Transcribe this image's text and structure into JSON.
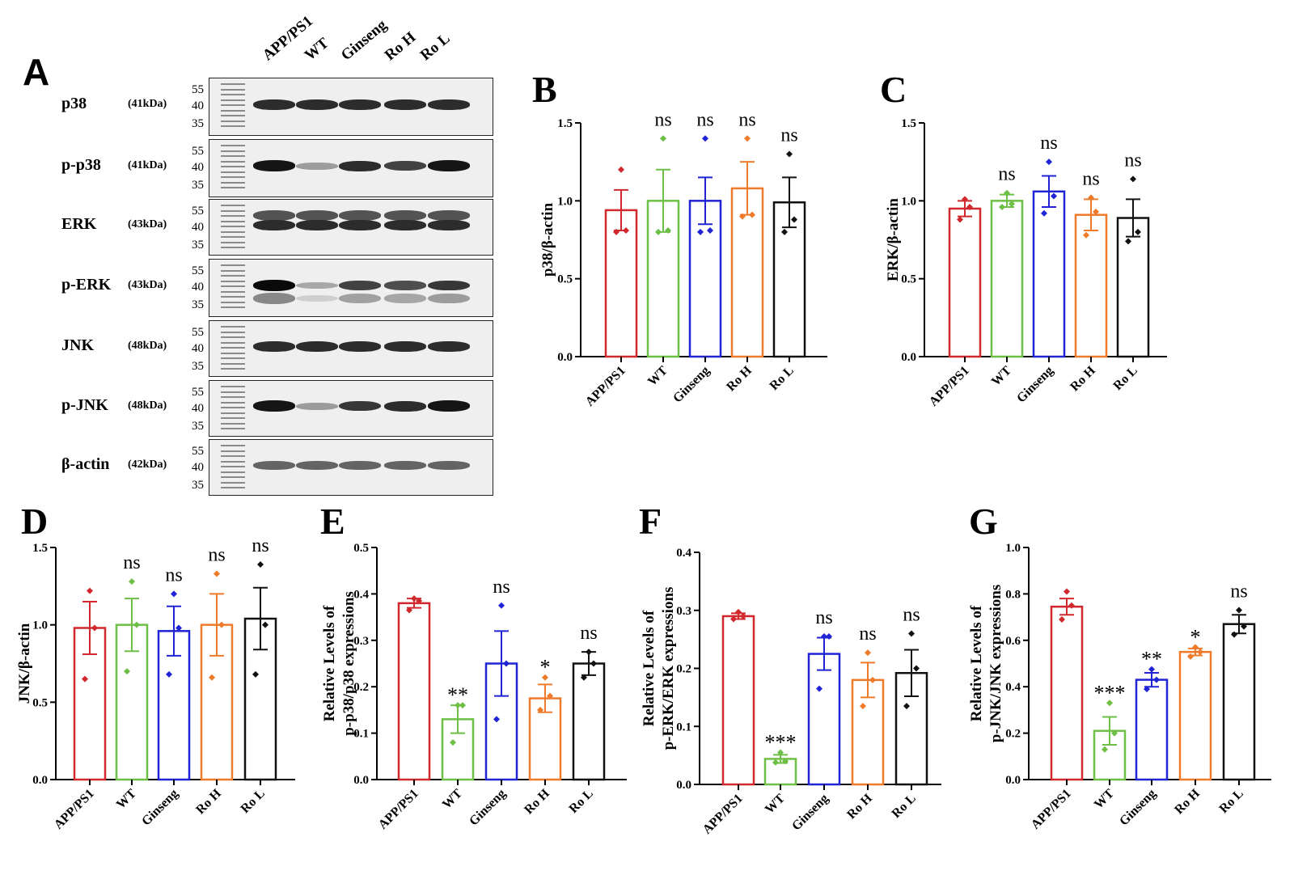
{
  "colors": {
    "APP/PS1": "#d0282c",
    "WT": "#6dbf45",
    "Ginseng": "#2024d4",
    "Ro H": "#ee7a2a",
    "Ro L": "#111111"
  },
  "panelA": {
    "letter": "A",
    "lanes": [
      "APP/PS1",
      "WT",
      "Ginseng",
      "Ro H",
      "Ro L"
    ],
    "blots": [
      {
        "label": "p38",
        "kda": "(41kDa)",
        "markers": [
          "55",
          "40",
          "35"
        ],
        "intensity": [
          0.85,
          0.85,
          0.85,
          0.85,
          0.85
        ]
      },
      {
        "label": "p-p38",
        "kda": "(41kDa)",
        "markers": [
          "55",
          "40",
          "35"
        ],
        "intensity": [
          0.95,
          0.35,
          0.85,
          0.75,
          0.95
        ]
      },
      {
        "label": "ERK",
        "kda": "(43kDa)",
        "markers": [
          "55",
          "40",
          "35"
        ],
        "intensity": [
          0.85,
          0.85,
          0.85,
          0.85,
          0.85
        ]
      },
      {
        "label": "p-ERK",
        "kda": "(43kDa)",
        "markers": [
          "55",
          "40",
          "35"
        ],
        "intensity": [
          1.0,
          0.3,
          0.75,
          0.7,
          0.8
        ]
      },
      {
        "label": "JNK",
        "kda": "(48kDa)",
        "markers": [
          "55",
          "40",
          "35"
        ],
        "intensity": [
          0.85,
          0.85,
          0.85,
          0.85,
          0.85
        ]
      },
      {
        "label": "p-JNK",
        "kda": "(48kDa)",
        "markers": [
          "55",
          "40",
          "35"
        ],
        "intensity": [
          0.95,
          0.35,
          0.8,
          0.85,
          0.95
        ]
      },
      {
        "label": "β-actin",
        "kda": "(42kDa)",
        "markers": [
          "55",
          "40",
          "35"
        ],
        "intensity": [
          0.6,
          0.6,
          0.6,
          0.6,
          0.6
        ]
      }
    ]
  },
  "chart_data": [
    {
      "panel": "B",
      "type": "bar",
      "ylabel": "p38/β-actin",
      "ylim": [
        0,
        1.5
      ],
      "yticks": [
        "0.0",
        "0.5",
        "1.0",
        "1.5"
      ],
      "categories": [
        "APP/PS1",
        "WT",
        "Ginseng",
        "Ro H",
        "Ro L"
      ],
      "values": [
        0.94,
        1.0,
        1.0,
        1.08,
        0.99
      ],
      "errors": [
        0.13,
        0.2,
        0.15,
        0.17,
        0.16
      ],
      "points": [
        [
          1.2,
          0.81,
          0.8
        ],
        [
          1.4,
          0.81,
          0.8
        ],
        [
          1.4,
          0.81,
          0.8
        ],
        [
          1.4,
          0.91,
          0.9
        ],
        [
          1.3,
          0.88,
          0.8
        ]
      ],
      "significance": [
        "",
        "ns",
        "ns",
        "ns",
        "ns"
      ]
    },
    {
      "panel": "C",
      "type": "bar",
      "ylabel": "ERK/β-actin",
      "ylim": [
        0,
        1.5
      ],
      "yticks": [
        "0.0",
        "0.5",
        "1.0",
        "1.5"
      ],
      "categories": [
        "APP/PS1",
        "WT",
        "Ginseng",
        "Ro H",
        "Ro L"
      ],
      "values": [
        0.95,
        1.0,
        1.06,
        0.91,
        0.89
      ],
      "errors": [
        0.05,
        0.04,
        0.1,
        0.1,
        0.12
      ],
      "points": [
        [
          1.01,
          0.96,
          0.88
        ],
        [
          1.05,
          0.98,
          0.96
        ],
        [
          1.25,
          1.03,
          0.92
        ],
        [
          1.02,
          0.93,
          0.78
        ],
        [
          1.14,
          0.8,
          0.74
        ]
      ],
      "significance": [
        "",
        "ns",
        "ns",
        "ns",
        "ns"
      ]
    },
    {
      "panel": "D",
      "type": "bar",
      "ylabel": "JNK/β-actin",
      "ylim": [
        0,
        1.5
      ],
      "yticks": [
        "0.0",
        "0.5",
        "1.0",
        "1.5"
      ],
      "categories": [
        "APP/PS1",
        "WT",
        "Ginseng",
        "Ro H",
        "Ro L"
      ],
      "values": [
        0.98,
        1.0,
        0.96,
        1.0,
        1.04
      ],
      "errors": [
        0.17,
        0.17,
        0.16,
        0.2,
        0.2
      ],
      "points": [
        [
          1.22,
          0.98,
          0.65
        ],
        [
          1.28,
          1.0,
          0.7
        ],
        [
          1.2,
          0.98,
          0.68
        ],
        [
          1.33,
          1.0,
          0.66
        ],
        [
          1.39,
          1.0,
          0.68
        ]
      ],
      "significance": [
        "",
        "ns",
        "ns",
        "ns",
        "ns"
      ]
    },
    {
      "panel": "E",
      "type": "bar",
      "ylabel": "Relative Levels of\np-p38/p38 expressions",
      "ylim": [
        0,
        0.5
      ],
      "yticks": [
        "0.0",
        "0.1",
        "0.2",
        "0.3",
        "0.4",
        "0.5"
      ],
      "categories": [
        "APP/PS1",
        "WT",
        "Ginseng",
        "Ro H",
        "Ro L"
      ],
      "values": [
        0.38,
        0.13,
        0.25,
        0.175,
        0.25
      ],
      "errors": [
        0.01,
        0.03,
        0.07,
        0.03,
        0.025
      ],
      "points": [
        [
          0.39,
          0.385,
          0.365
        ],
        [
          0.16,
          0.16,
          0.08
        ],
        [
          0.375,
          0.25,
          0.13
        ],
        [
          0.22,
          0.18,
          0.15
        ],
        [
          0.275,
          0.25,
          0.22
        ]
      ],
      "significance": [
        "",
        "**",
        "ns",
        "*",
        "ns"
      ]
    },
    {
      "panel": "F",
      "type": "bar",
      "ylabel": "Relative Levels of\np-ERK/ERK expressions",
      "ylim": [
        0,
        0.4
      ],
      "yticks": [
        "0.0",
        "0.1",
        "0.2",
        "0.3",
        "0.4"
      ],
      "categories": [
        "APP/PS1",
        "WT",
        "Ginseng",
        "Ro H",
        "Ro L"
      ],
      "values": [
        0.29,
        0.044,
        0.225,
        0.18,
        0.192
      ],
      "errors": [
        0.005,
        0.007,
        0.028,
        0.03,
        0.04
      ],
      "points": [
        [
          0.297,
          0.29,
          0.285
        ],
        [
          0.055,
          0.04,
          0.038
        ],
        [
          0.255,
          0.255,
          0.165
        ],
        [
          0.227,
          0.18,
          0.135
        ],
        [
          0.26,
          0.2,
          0.135
        ]
      ],
      "significance": [
        "",
        "***",
        "ns",
        "ns",
        "ns"
      ]
    },
    {
      "panel": "G",
      "type": "bar",
      "ylabel": "Relative Levels of\np-JNK/JNK expressions",
      "ylim": [
        0,
        1.0
      ],
      "yticks": [
        "0.0",
        "0.2",
        "0.4",
        "0.6",
        "0.8",
        "1.0"
      ],
      "categories": [
        "APP/PS1",
        "WT",
        "Ginseng",
        "Ro H",
        "Ro L"
      ],
      "values": [
        0.745,
        0.21,
        0.43,
        0.55,
        0.67
      ],
      "errors": [
        0.035,
        0.06,
        0.03,
        0.015,
        0.04
      ],
      "points": [
        [
          0.81,
          0.75,
          0.69
        ],
        [
          0.33,
          0.2,
          0.13
        ],
        [
          0.475,
          0.43,
          0.39
        ],
        [
          0.57,
          0.55,
          0.53
        ],
        [
          0.73,
          0.66,
          0.625
        ]
      ],
      "significance": [
        "",
        "***",
        "**",
        "*",
        "ns"
      ]
    }
  ]
}
